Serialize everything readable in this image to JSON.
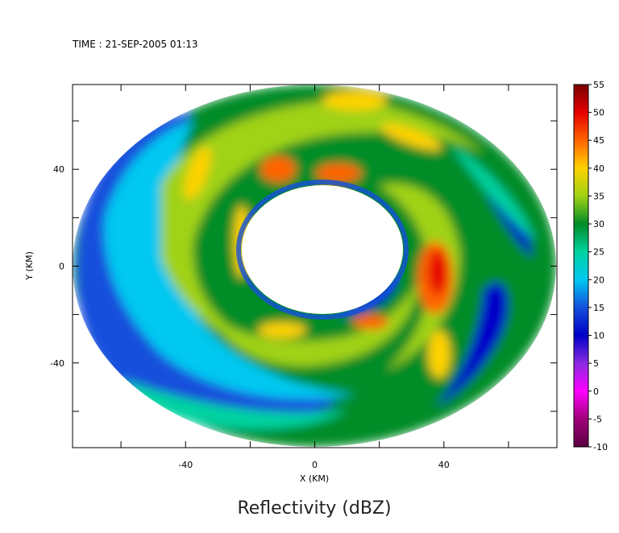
{
  "header": {
    "time_label": "TIME : 21-SEP-2005 01:13"
  },
  "chart_data": {
    "type": "heatmap",
    "title": "Reflectivity (dBZ)",
    "xlabel": "X (KM)",
    "ylabel": "Y (KM)",
    "xlim": [
      -75,
      75
    ],
    "ylim": [
      -75,
      75
    ],
    "x_ticks": [
      -40,
      0,
      40
    ],
    "y_ticks": [
      40,
      0,
      -40
    ],
    "x_tick_labels": [
      "-40",
      "0",
      "40"
    ],
    "y_tick_labels": [
      "40",
      "0",
      "-40"
    ],
    "grid": false,
    "colorbar": {
      "placement": "right",
      "min": -10,
      "max": 55,
      "tick_labels": [
        "55",
        "50",
        "45",
        "40",
        "35",
        "30",
        "25",
        "20",
        "15",
        "10",
        "5",
        "0",
        "-5",
        "-10"
      ],
      "stops": [
        {
          "value": -10,
          "color": "#5a0040"
        },
        {
          "value": -5,
          "color": "#a0007a"
        },
        {
          "value": 0,
          "color": "#ff00ff"
        },
        {
          "value": 5,
          "color": "#8a2be2"
        },
        {
          "value": 10,
          "color": "#0000c8"
        },
        {
          "value": 15,
          "color": "#1450dc"
        },
        {
          "value": 20,
          "color": "#00c8f0"
        },
        {
          "value": 25,
          "color": "#00d2a0"
        },
        {
          "value": 30,
          "color": "#008c28"
        },
        {
          "value": 35,
          "color": "#a0d214"
        },
        {
          "value": 40,
          "color": "#ffd200"
        },
        {
          "value": 45,
          "color": "#ff6400"
        },
        {
          "value": 50,
          "color": "#e60000"
        },
        {
          "value": 55,
          "color": "#780000"
        }
      ]
    }
  }
}
